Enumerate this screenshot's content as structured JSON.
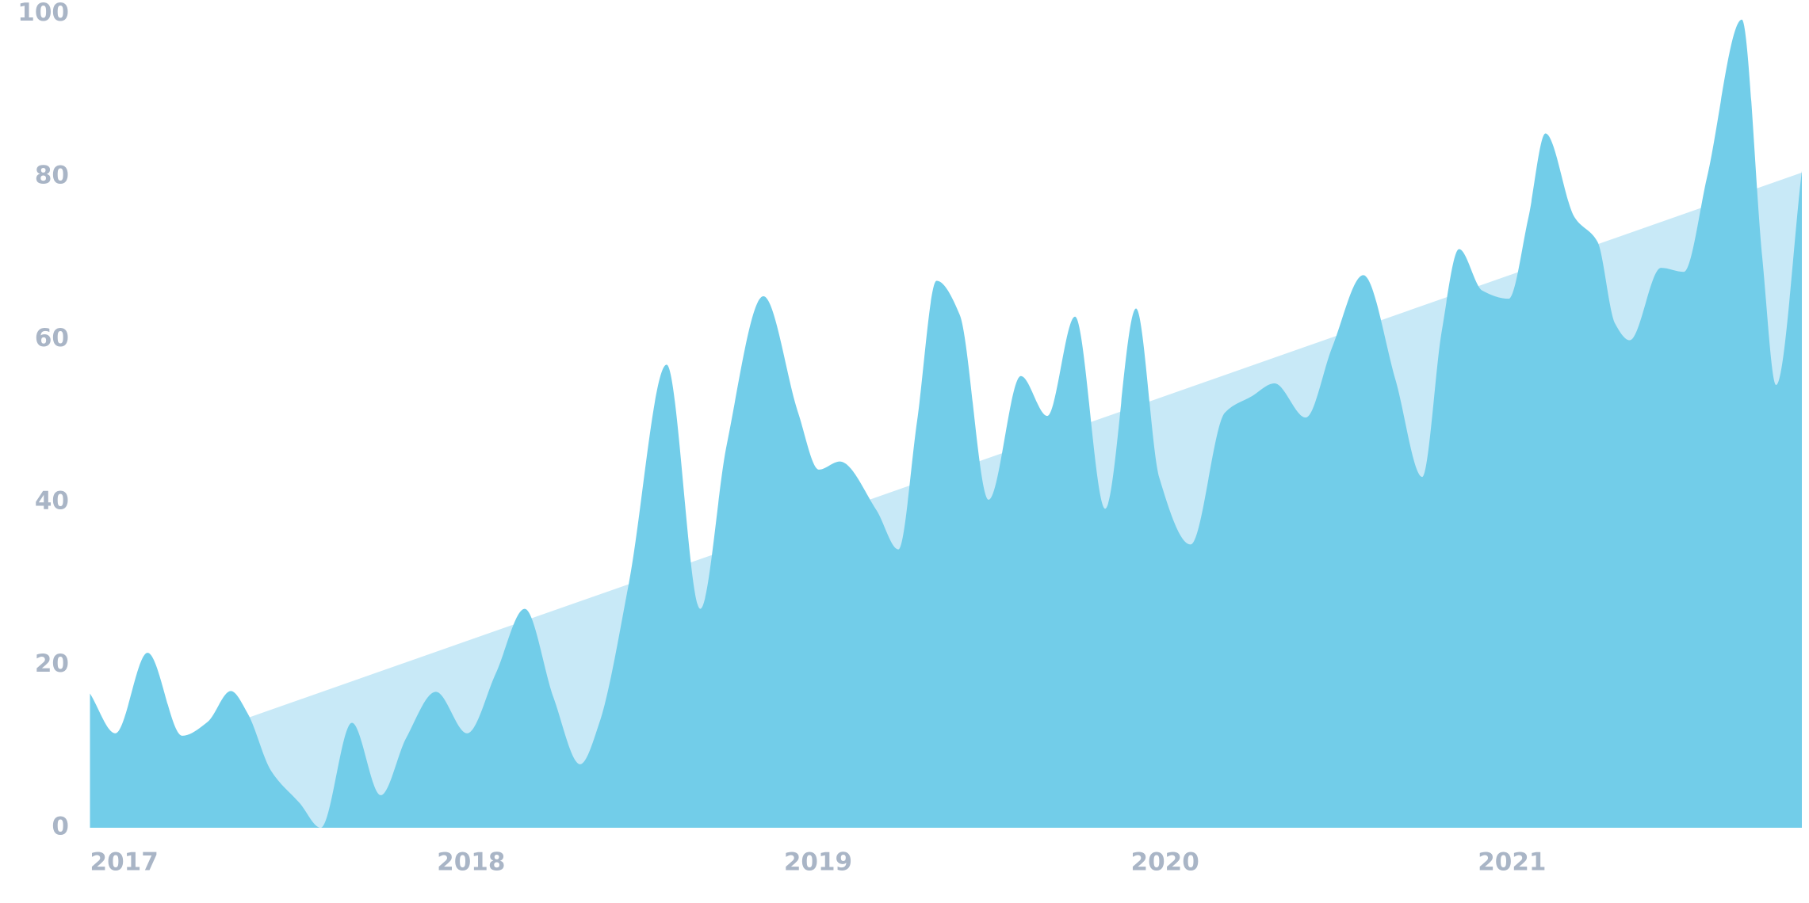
{
  "chart_data": {
    "type": "area",
    "xlim": [
      2017,
      2021.934
    ],
    "xticks": [
      2017,
      2018,
      2019,
      2020,
      2021
    ],
    "ylim": [
      0,
      100
    ],
    "yticks": [
      0,
      20,
      40,
      60,
      80,
      100
    ],
    "grid": false,
    "series": [
      {
        "color": "#c8e9f7",
        "smooth": false,
        "x": [
          2017,
          2021.934
        ],
        "values": [
          6.7,
          80.5
        ]
      },
      {
        "color": "#72cde9",
        "smooth": true,
        "x": [
          2017.0,
          2017.073,
          2017.166,
          2017.266,
          2017.339,
          2017.406,
          2017.455,
          2017.522,
          2017.605,
          2017.665,
          2017.755,
          2017.838,
          2017.911,
          2017.997,
          2018.087,
          2018.17,
          2018.253,
          2018.336,
          2018.413,
          2018.469,
          2018.553,
          2018.662,
          2018.759,
          2018.835,
          2018.941,
          2019.041,
          2019.101,
          2019.161,
          2019.267,
          2019.33,
          2019.384,
          2019.44,
          2019.507,
          2019.59,
          2019.683,
          2019.759,
          2019.839,
          2019.926,
          2020.015,
          2020.082,
          2020.172,
          2020.271,
          2020.348,
          2020.414,
          2020.504,
          2020.58,
          2020.67,
          2020.763,
          2020.84,
          2020.896,
          2020.946,
          2021.013,
          2021.089,
          2021.146,
          2021.195,
          2021.279,
          2021.345,
          2021.395,
          2021.438,
          2021.528,
          2021.594,
          2021.661,
          2021.761,
          2021.82,
          2021.86,
          2021.934
        ],
        "values": [
          16.5,
          11.6,
          21.5,
          11.3,
          13,
          16.8,
          14,
          7,
          3,
          0,
          12.9,
          4,
          11,
          16.7,
          11.6,
          19,
          26.9,
          16,
          7.8,
          13,
          30,
          56.9,
          26.9,
          47,
          65.3,
          51,
          44,
          45,
          39,
          34.2,
          50,
          67.2,
          63,
          40.3,
          55.5,
          50.6,
          62.8,
          39.2,
          63.8,
          43,
          34.8,
          51,
          53,
          54.6,
          50.4,
          59,
          67.9,
          55,
          43.1,
          61,
          71.1,
          66,
          65,
          75,
          85.3,
          75,
          72,
          62,
          59.9,
          68.8,
          68.3,
          80,
          99.3,
          70,
          54.4,
          80.7
        ]
      }
    ]
  }
}
